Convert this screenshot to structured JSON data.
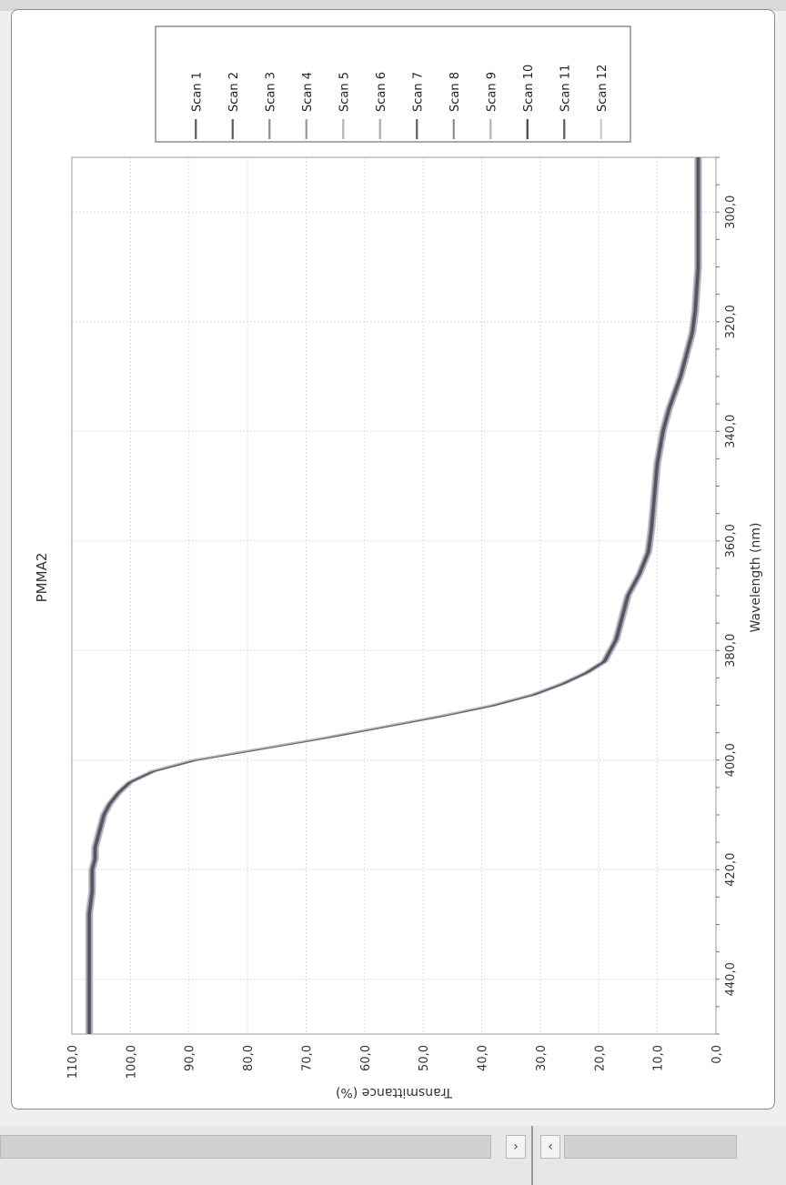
{
  "chart_data": {
    "type": "line",
    "title": "PMMA2",
    "xlabel": "Wavelength (nm)",
    "ylabel": "Transmittance (%)",
    "xlim": [
      290,
      450
    ],
    "ylim": [
      0,
      110
    ],
    "x_ticks": [
      "300,0",
      "320,0",
      "340,0",
      "360,0",
      "380,0",
      "400,0",
      "420,0",
      "440,0"
    ],
    "y_ticks": [
      "0,0",
      "10,0",
      "20,0",
      "30,0",
      "40,0",
      "50,0",
      "60,0",
      "70,0",
      "80,0",
      "90,0",
      "100,0",
      "110,0"
    ],
    "grid": true,
    "legend_position": "top-right",
    "x": [
      290,
      300,
      310,
      318,
      322,
      326,
      330,
      336,
      340,
      346,
      352,
      358,
      362,
      366,
      370,
      374,
      378,
      382,
      384,
      386,
      388,
      390,
      392,
      394,
      396,
      398,
      400,
      402,
      404,
      406,
      408,
      410,
      412,
      414,
      416,
      418,
      420,
      424,
      428,
      432,
      436,
      440,
      444,
      448,
      450
    ],
    "series": [
      {
        "name": "Scan 1",
        "color": "#5a5a66"
      },
      {
        "name": "Scan 2",
        "color": "#5a5a66"
      },
      {
        "name": "Scan 3",
        "color": "#8c8c96"
      },
      {
        "name": "Scan 4",
        "color": "#9a9aa4"
      },
      {
        "name": "Scan 5",
        "color": "#b4b4be"
      },
      {
        "name": "Scan 6",
        "color": "#a8a8b2"
      },
      {
        "name": "Scan 7",
        "color": "#5a5a66"
      },
      {
        "name": "Scan 8",
        "color": "#8c8c96"
      },
      {
        "name": "Scan 9",
        "color": "#b4b4be"
      },
      {
        "name": "Scan 10",
        "color": "#444450"
      },
      {
        "name": "Scan 11",
        "color": "#5a5a66"
      },
      {
        "name": "Scan 12",
        "color": "#c8c8d2"
      }
    ],
    "values": [
      3,
      3,
      3,
      3.5,
      4,
      5,
      6,
      8,
      9,
      10,
      10.5,
      11,
      11.5,
      13,
      15,
      16,
      17,
      19,
      22,
      26,
      31,
      38,
      47,
      57,
      67,
      78,
      89,
      96,
      100,
      102,
      103.5,
      104.5,
      105,
      105.5,
      106,
      106,
      106.5,
      106.5,
      107,
      107,
      107,
      107,
      107,
      107,
      107
    ]
  }
}
